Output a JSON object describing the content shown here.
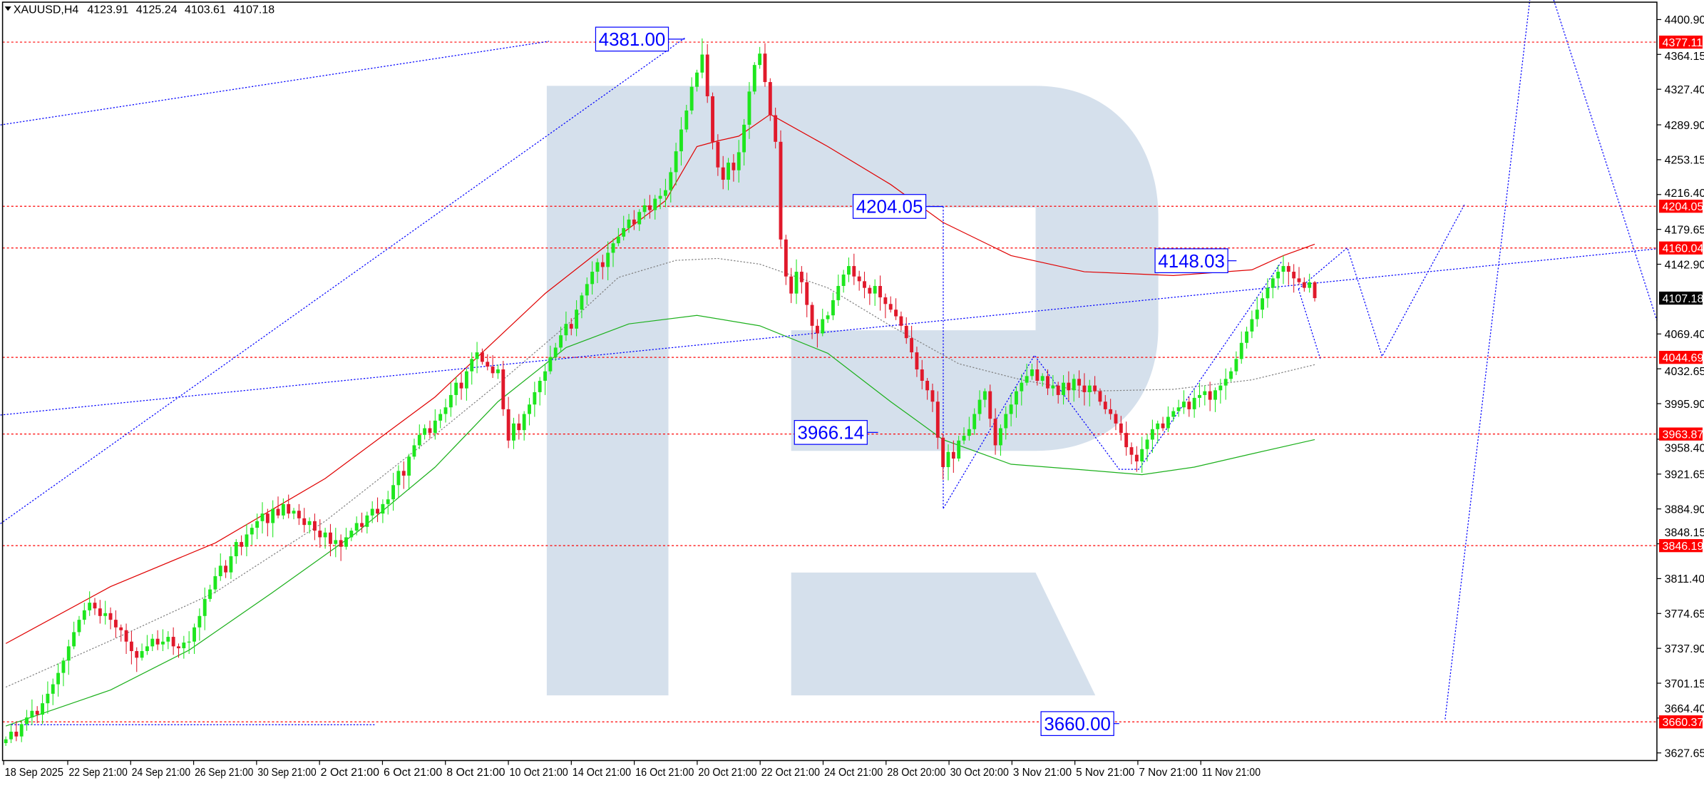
{
  "header": {
    "symbol": "XAUUSD,H4",
    "open": "4123.91",
    "high": "4125.24",
    "low": "4103.61",
    "close": "4107.18",
    "menu_icon": "triangle-down-icon"
  },
  "colors": {
    "bull": "#1ee61e",
    "bear": "#e0192b",
    "level": "#ff0000",
    "annotation": "#0000ff",
    "upper_band": "#e00000",
    "middle_band": "#808080",
    "lower_band": "#1cb01c",
    "watermark": "#d5e0ec"
  },
  "chart_data": {
    "type": "candlestick",
    "timeframe": "H4",
    "symbol": "XAUUSD",
    "ylim": [
      3610,
      4420
    ],
    "grid": false,
    "price_ticks": [
      "4400.90",
      "4364.15",
      "4327.40",
      "4289.90",
      "4253.15",
      "4216.40",
      "4179.65",
      "4142.90",
      "4069.40",
      "4032.65",
      "3995.90",
      "3958.40",
      "3921.65",
      "3884.90",
      "3848.15",
      "3811.40",
      "3774.65",
      "3737.90",
      "3701.15",
      "3664.40",
      "3627.65"
    ],
    "time_labels": [
      "18 Sep 2025",
      "22 Sep 21:00",
      "24 Sep 21:00",
      "26 Sep 21:00",
      "30 Sep 21:00",
      "2 Oct 21:00",
      "6 Oct 21:00",
      "8 Oct 21:00",
      "10 Oct 21:00",
      "14 Oct 21:00",
      "16 Oct 21:00",
      "20 Oct 21:00",
      "22 Oct 21:00",
      "24 Oct 21:00",
      "28 Oct 20:00",
      "30 Oct 20:00",
      "3 Nov 21:00",
      "5 Nov 21:00",
      "7 Nov 21:00",
      "11 Nov 21:00"
    ],
    "first_open": 3638,
    "close": [
      3642,
      3650,
      3645,
      3658,
      3665,
      3672,
      3668,
      3680,
      3690,
      3700,
      3712,
      3725,
      3740,
      3755,
      3768,
      3778,
      3786,
      3780,
      3772,
      3775,
      3768,
      3760,
      3757,
      3745,
      3735,
      3728,
      3735,
      3740,
      3748,
      3742,
      3745,
      3750,
      3740,
      3738,
      3744,
      3745,
      3760,
      3772,
      3790,
      3800,
      3814,
      3825,
      3818,
      3835,
      3850,
      3845,
      3858,
      3865,
      3872,
      3880,
      3870,
      3885,
      3878,
      3890,
      3880,
      3883,
      3875,
      3868,
      3872,
      3862,
      3855,
      3860,
      3848,
      3852,
      3845,
      3855,
      3862,
      3870,
      3866,
      3878,
      3885,
      3880,
      3890,
      3895,
      3910,
      3925,
      3920,
      3940,
      3952,
      3963,
      3970,
      3965,
      3978,
      3985,
      3992,
      4005,
      4018,
      4012,
      4030,
      4043,
      4050,
      4040,
      4035,
      4028,
      4032,
      3990,
      3957,
      3975,
      3968,
      3985,
      3995,
      4008,
      4020,
      4030,
      4045,
      4055,
      4068,
      4080,
      4075,
      4095,
      4110,
      4122,
      4135,
      4145,
      4140,
      4155,
      4165,
      4172,
      4181,
      4190,
      4185,
      4198,
      4205,
      4200,
      4212,
      4215,
      4221,
      4240,
      4262,
      4285,
      4305,
      4330,
      4345,
      4364,
      4320,
      4272,
      4245,
      4232,
      4250,
      4242,
      4261,
      4290,
      4325,
      4353,
      4365,
      4335,
      4300,
      4272,
      4169,
      4130,
      4112,
      4135,
      4124,
      4100,
      4078,
      4070,
      4085,
      4089,
      4105,
      4120,
      4132,
      4141,
      4130,
      4125,
      4118,
      4112,
      4120,
      4108,
      4101,
      4095,
      4088,
      4078,
      4065,
      4050,
      4032,
      4020,
      4010,
      3998,
      3960,
      3929,
      3945,
      3938,
      3957,
      3962,
      3969,
      3985,
      4000,
      4009,
      3980,
      3952,
      3970,
      3985,
      3995,
      4009,
      4018,
      4025,
      4032,
      4020,
      4025,
      4012,
      4015,
      4005,
      4018,
      4010,
      4022,
      4015,
      4008,
      4015,
      4009,
      3998,
      3990,
      3985,
      3975,
      3965,
      3950,
      3942,
      3935,
      3948,
      3958,
      3969,
      3975,
      3970,
      3982,
      3988,
      3992,
      3998,
      3990,
      4002,
      4005,
      4009,
      4000,
      4010,
      4015,
      4022,
      4030,
      4043,
      4060,
      4072,
      4085,
      4095,
      4107,
      4118,
      4128,
      4135,
      4141,
      4135,
      4128,
      4124,
      4118,
      4123.91,
      4107.18
    ],
    "last_bar": {
      "open": 4123.91,
      "high": 4125.24,
      "low": 4103.61,
      "close": 4107.18
    },
    "bands": {
      "upper": [
        [
          0,
          3743
        ],
        [
          20,
          3803
        ],
        [
          40,
          3849
        ],
        [
          61,
          3917
        ],
        [
          82,
          4003
        ],
        [
          92,
          4055
        ],
        [
          103,
          4112
        ],
        [
          115,
          4164
        ],
        [
          126,
          4210
        ],
        [
          132,
          4267
        ],
        [
          136,
          4273
        ],
        [
          140,
          4278
        ],
        [
          146,
          4301
        ],
        [
          157,
          4267
        ],
        [
          169,
          4227
        ],
        [
          179,
          4187
        ],
        [
          192,
          4152
        ],
        [
          206,
          4135
        ],
        [
          223,
          4131
        ],
        [
          238,
          4137
        ],
        [
          244,
          4152
        ],
        [
          250,
          4164
        ]
      ],
      "middle": [
        [
          0,
          3697
        ],
        [
          20,
          3746
        ],
        [
          40,
          3797
        ],
        [
          61,
          3872
        ],
        [
          82,
          3963
        ],
        [
          96,
          4026
        ],
        [
          107,
          4078
        ],
        [
          117,
          4129
        ],
        [
          128,
          4147
        ],
        [
          136,
          4149
        ],
        [
          144,
          4143
        ],
        [
          157,
          4118
        ],
        [
          169,
          4078
        ],
        [
          182,
          4038
        ],
        [
          194,
          4021
        ],
        [
          206,
          4009
        ],
        [
          223,
          4011
        ],
        [
          238,
          4021
        ],
        [
          250,
          4037
        ]
      ],
      "lower": [
        [
          0,
          3656
        ],
        [
          20,
          3694
        ],
        [
          35,
          3736
        ],
        [
          51,
          3797
        ],
        [
          67,
          3860
        ],
        [
          82,
          3929
        ],
        [
          94,
          3998
        ],
        [
          107,
          4055
        ],
        [
          119,
          4080
        ],
        [
          132,
          4089
        ],
        [
          144,
          4078
        ],
        [
          157,
          4049
        ],
        [
          169,
          3998
        ],
        [
          179,
          3958
        ],
        [
          192,
          3932
        ],
        [
          206,
          3926
        ],
        [
          217,
          3921
        ],
        [
          227,
          3929
        ],
        [
          238,
          3943
        ],
        [
          250,
          3958
        ]
      ]
    },
    "levels": [
      {
        "price": 4377.11,
        "label": "4377.11"
      },
      {
        "price": 4204.05,
        "label": "4204.05"
      },
      {
        "price": 4160.04,
        "label": "4160.04"
      },
      {
        "price": 4044.69,
        "label": "4044.69"
      },
      {
        "price": 3963.87,
        "label": "3963.87"
      },
      {
        "price": 3846.19,
        "label": "3846.19"
      },
      {
        "price": 3660.37,
        "label": "3660.37"
      }
    ],
    "current_price": {
      "price": 4107.18,
      "label": "4107.18"
    },
    "annotations": [
      "4381.00",
      "4204.05",
      "4148.03",
      "3966.14",
      "3660.00"
    ]
  }
}
